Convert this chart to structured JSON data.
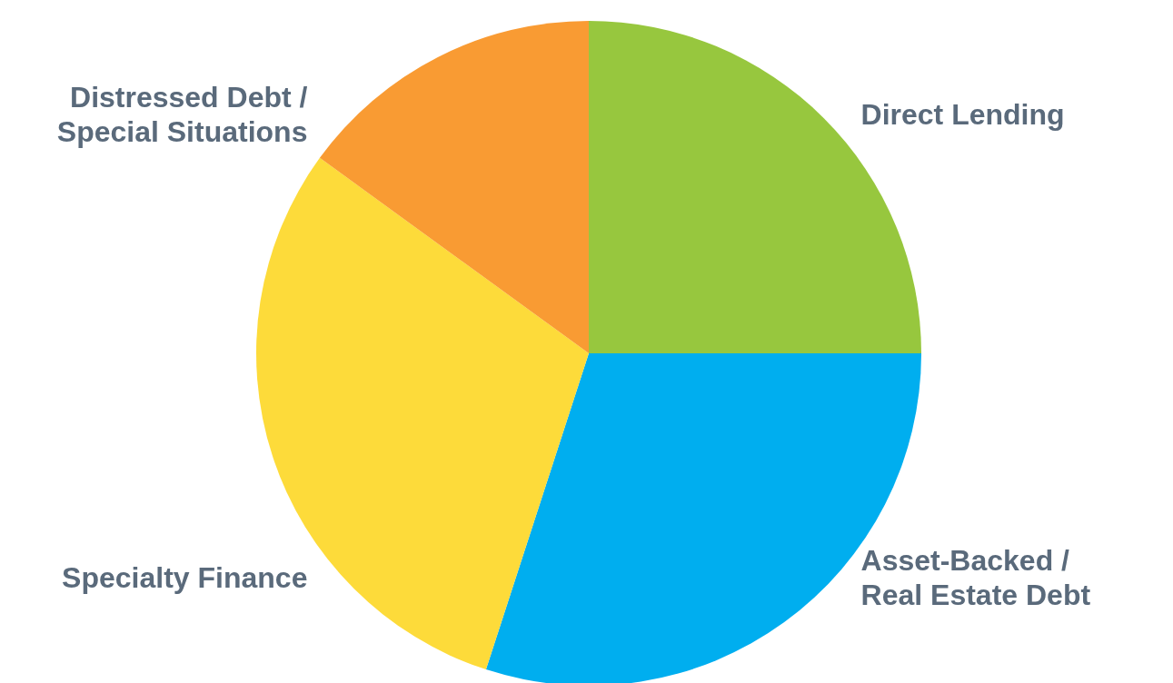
{
  "chart_data": {
    "type": "pie",
    "categories": [
      "Direct Lending",
      "Asset-Backed /\nReal Estate Debt",
      "Specialty Finance",
      "Distressed Debt /\nSpecial Situations"
    ],
    "values": [
      25,
      30,
      30,
      15
    ],
    "colors": [
      "#97c73e",
      "#00aeef",
      "#fddb3a",
      "#f99b33"
    ],
    "legend": false
  }
}
